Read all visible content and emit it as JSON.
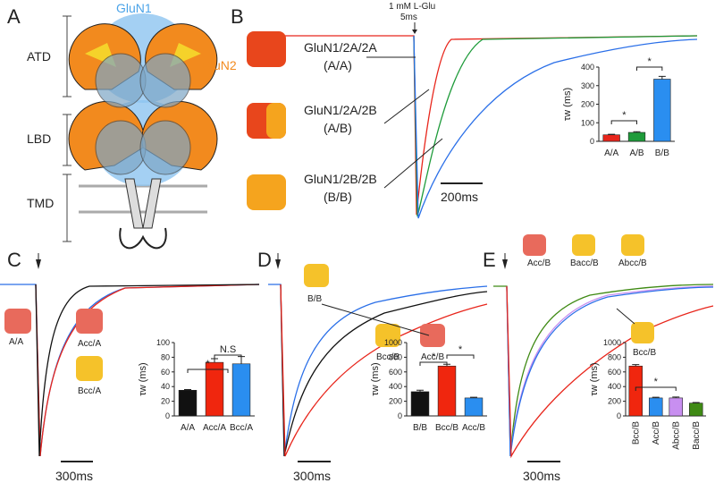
{
  "panel_A": {
    "letter": "A",
    "glun1": "GluN1",
    "glun2": "GluN2",
    "atd": "ATD",
    "lbd": "LBD",
    "tmd": "TMD"
  },
  "panel_B": {
    "letter": "B",
    "stimulus": "1 mM L-Glu",
    "pulse": "5ms",
    "traces": [
      {
        "name": "GluN1/2A/2A",
        "short": "(A/A)"
      },
      {
        "name": "GluN1/2A/2B",
        "short": "(A/B)"
      },
      {
        "name": "GluN1/2B/2B",
        "short": "(B/B)"
      }
    ],
    "scale": "200ms"
  },
  "panel_C": {
    "letter": "C",
    "constructs": [
      "A/A",
      "Acc/A",
      "Bcc/A"
    ],
    "scale": "300ms"
  },
  "panel_D": {
    "letter": "D",
    "constructs": [
      "B/B",
      "Bcc/B",
      "Acc/B"
    ],
    "scale": "300ms"
  },
  "panel_E": {
    "letter": "E",
    "constructs": [
      "Acc/B",
      "Bacc/B",
      "Abcc/B",
      "Bcc/B"
    ],
    "scale": "300ms"
  },
  "chart_data": [
    {
      "type": "bar",
      "ylabel": "τw (ms)",
      "categories": [
        "A/A",
        "A/B",
        "B/B"
      ],
      "values": [
        35,
        48,
        335
      ],
      "errors": [
        3,
        4,
        15
      ],
      "colors": [
        "#e8261c",
        "#1e9b3a",
        "#2a8ef0"
      ],
      "ylim": [
        0,
        400
      ],
      "yticks": [
        0,
        100,
        200,
        300,
        400
      ],
      "annotations": [
        "*",
        "*"
      ]
    },
    {
      "type": "bar",
      "ylabel": "τw (ms)",
      "categories": [
        "A/A",
        "Acc/A",
        "Bcc/A"
      ],
      "values": [
        35,
        73,
        71
      ],
      "errors": [
        1,
        5,
        10
      ],
      "colors": [
        "#111111",
        "#f0260e",
        "#2a8ef0"
      ],
      "ylim": [
        0,
        100
      ],
      "yticks": [
        0,
        20,
        40,
        60,
        80,
        100
      ],
      "annotations": [
        "*",
        "N.S"
      ]
    },
    {
      "type": "bar",
      "ylabel": "τw (ms)",
      "categories": [
        "B/B",
        "Bcc/B",
        "Acc/B"
      ],
      "values": [
        330,
        680,
        245
      ],
      "errors": [
        20,
        25,
        10
      ],
      "colors": [
        "#111111",
        "#f0260e",
        "#2a8ef0"
      ],
      "ylim": [
        0,
        1000
      ],
      "yticks": [
        0,
        200,
        400,
        600,
        800,
        1000
      ],
      "annotations": [
        "*",
        "*"
      ]
    },
    {
      "type": "bar",
      "ylabel": "τw (ms)",
      "categories": [
        "Bcc/B",
        "Acc/B",
        "Abcc/B",
        "Bacc/B"
      ],
      "values": [
        680,
        245,
        245,
        175
      ],
      "errors": [
        20,
        10,
        12,
        8
      ],
      "colors": [
        "#f0260e",
        "#2a8ef0",
        "#c88ff0",
        "#3f8a14"
      ],
      "ylim": [
        0,
        1000
      ],
      "yticks": [
        0,
        200,
        400,
        600,
        800,
        1000
      ],
      "annotations": [
        "*"
      ]
    }
  ]
}
